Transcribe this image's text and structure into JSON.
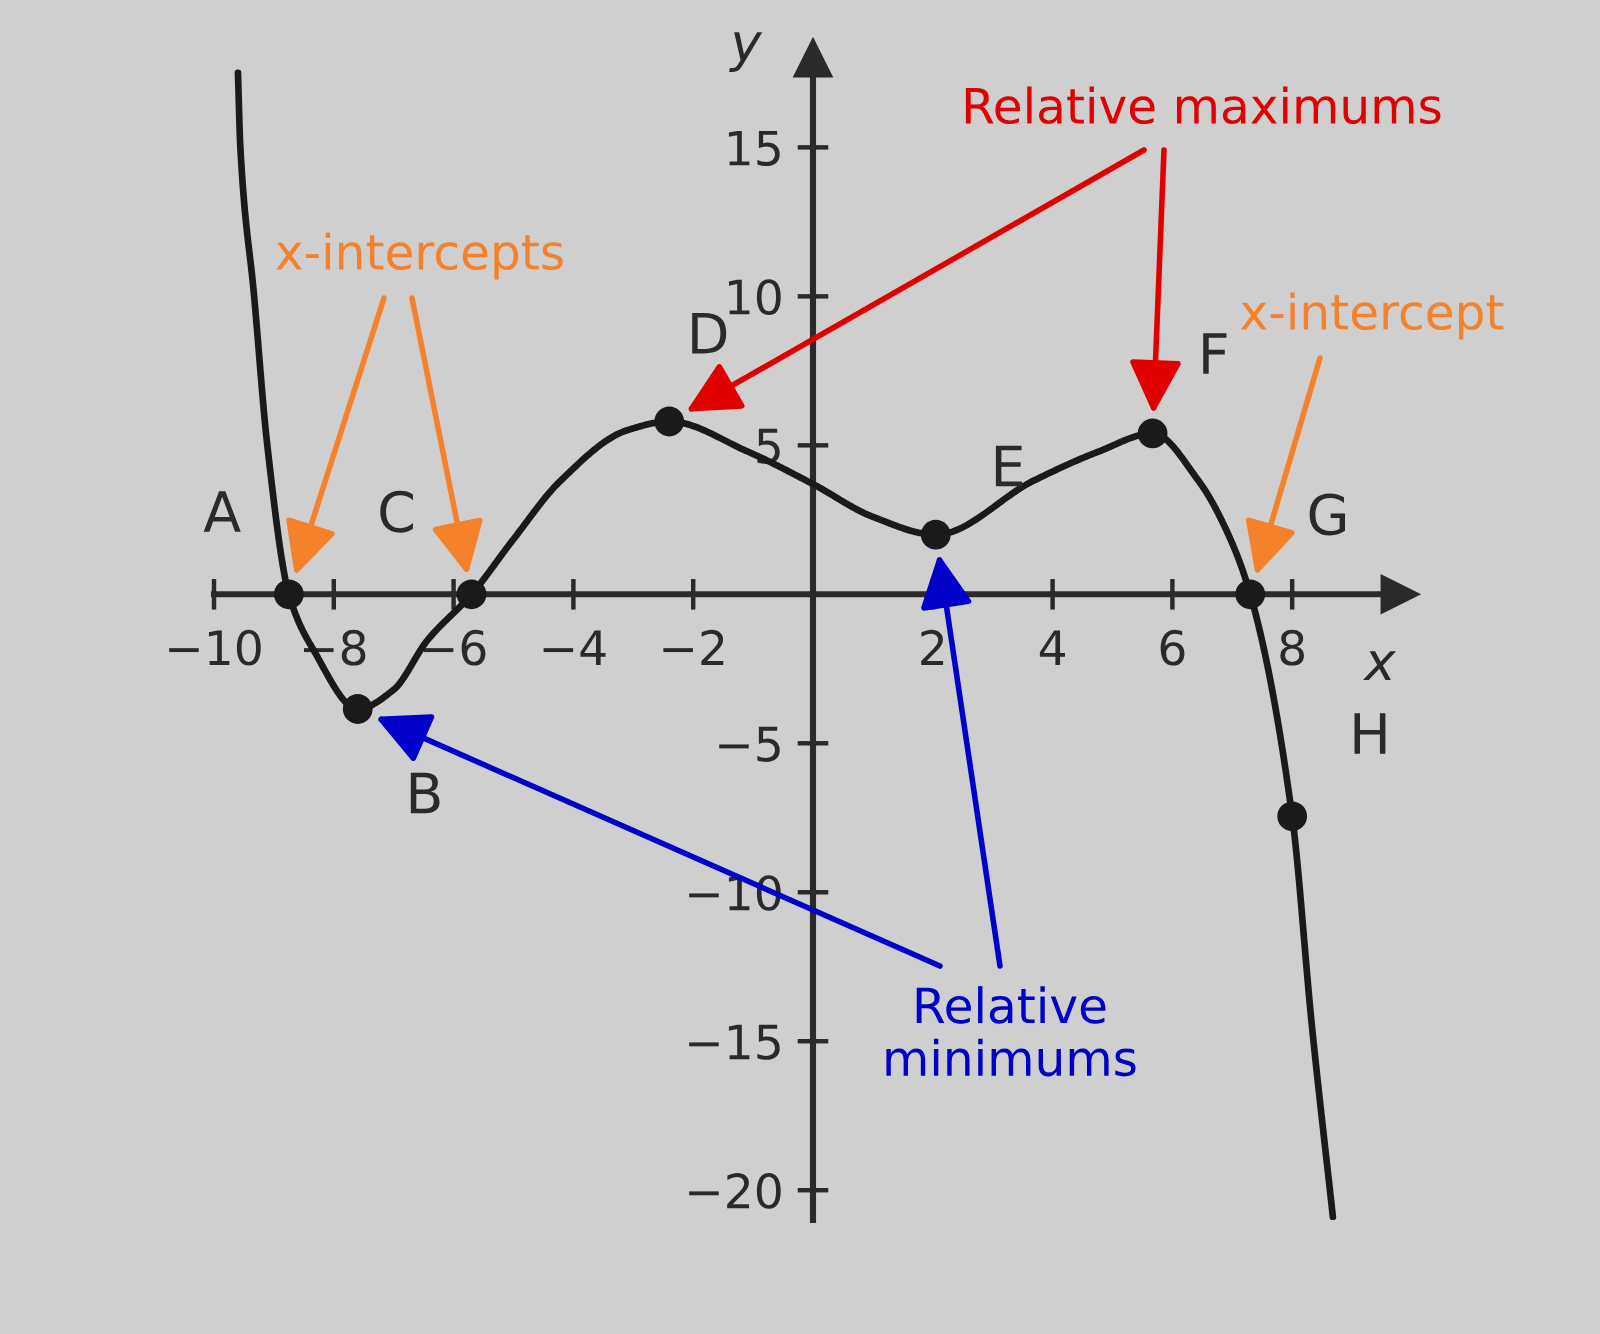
{
  "chart_data": {
    "type": "line",
    "xlabel": "x",
    "ylabel": "y",
    "series": [
      {
        "color": "#1a1a1a",
        "x": [
          -9.6,
          -9.56,
          -9.33,
          -9.11,
          -8.75,
          -8.33,
          -7.6,
          -7.0,
          -6.44,
          -5.7,
          -5.0,
          -4.22,
          -3.11,
          -2.4,
          -1.1,
          0,
          1,
          2.05,
          3.67,
          4.78,
          5.67,
          6.44,
          6.89,
          7.3,
          8.0,
          8.33,
          8.68
        ],
        "values": [
          17.5,
          15,
          10,
          5,
          0,
          -1.9,
          -3.85,
          -3.2,
          -1.55,
          0,
          1.85,
          3.8,
          5.5,
          5.8,
          4.8,
          3.7,
          2.6,
          2.0,
          3.8,
          4.8,
          5.4,
          3.8,
          2.2,
          0,
          -7.45,
          -14.5,
          -20.9
        ]
      },
      {
        "type": "scatter",
        "color": "#1a1a1a",
        "marker": "circle",
        "x": [
          -8.75,
          -7.6,
          -5.7,
          -2.4,
          2.05,
          5.67,
          7.3,
          8.0
        ],
        "values": [
          0,
          -3.85,
          0,
          5.8,
          2.0,
          5.4,
          0,
          -7.45
        ]
      }
    ],
    "xlim": [
      -10,
      9.8
    ],
    "ylim": [
      -21,
      18
    ],
    "xticks": [
      {
        "value": -10,
        "label": "−10"
      },
      {
        "value": -8,
        "label": "−8"
      },
      {
        "value": -6,
        "label": "−6"
      },
      {
        "value": -4,
        "label": "−4"
      },
      {
        "value": -2,
        "label": "−2"
      },
      2,
      4,
      6,
      8
    ],
    "yticks": [
      {
        "value": -20,
        "label": "−20"
      },
      {
        "value": -15,
        "label": "−15"
      },
      {
        "value": -10,
        "label": "−10"
      },
      {
        "value": -5,
        "label": "−5"
      },
      5,
      10,
      15
    ],
    "annotations": [
      {
        "text": "A",
        "x": -8.75,
        "y": 0
      },
      {
        "text": "B",
        "x": -7.6,
        "y": -3.85
      },
      {
        "text": "C",
        "x": -5.7,
        "y": 0
      },
      {
        "text": "D",
        "x": -2.4,
        "y": 5.8
      },
      {
        "text": "E",
        "x": 2.05,
        "y": 2.0
      },
      {
        "text": "F",
        "x": 5.67,
        "y": 5.4
      },
      {
        "text": "G",
        "x": 7.3,
        "y": 0
      },
      {
        "text": "H",
        "x": 8.0,
        "y": -7.45
      },
      "x-intercepts",
      "Relative maximums",
      "x-intercept",
      "Relative\nminimums"
    ]
  }
}
